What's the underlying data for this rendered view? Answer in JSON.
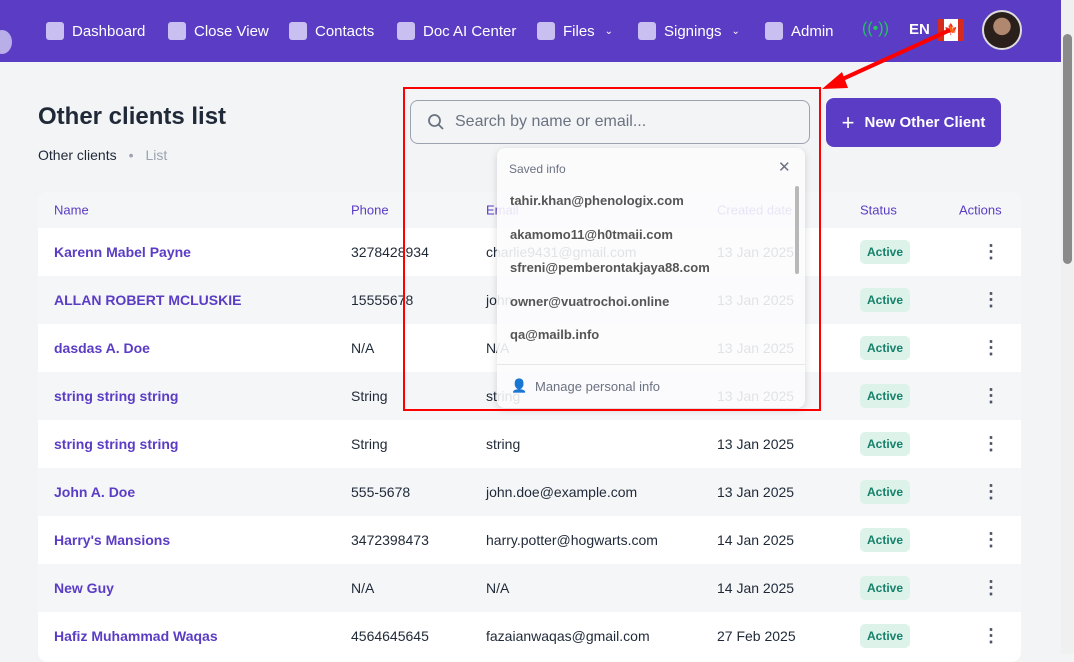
{
  "nav": {
    "items": [
      {
        "label": "Dashboard",
        "icon": "chart-icon"
      },
      {
        "label": "Close View",
        "icon": "calendar-icon"
      },
      {
        "label": "Contacts",
        "icon": "contact-icon"
      },
      {
        "label": "Doc AI Center",
        "icon": "monitor-icon"
      },
      {
        "label": "Files",
        "icon": "file-icon",
        "dropdown": true
      },
      {
        "label": "Signings",
        "icon": "star-icon",
        "dropdown": true
      },
      {
        "label": "Admin",
        "icon": "lock-icon"
      }
    ],
    "lang": "EN",
    "flag": "🍁"
  },
  "page": {
    "title": "Other clients list",
    "breadcrumb": [
      "Other clients",
      "List"
    ]
  },
  "search": {
    "placeholder": "Search by name or email...",
    "value": ""
  },
  "new_button": "New Other Client",
  "table": {
    "headers": [
      "Name",
      "Phone",
      "Email",
      "Created date",
      "Status",
      "Actions"
    ],
    "rows": [
      [
        "Karenn Mabel Payne",
        "3278428934",
        "charlie9431@gmail.com",
        "13 Jan 2025",
        "Active"
      ],
      [
        "ALLAN ROBERT MCLUSKIE",
        "15555678",
        "john",
        "13 Jan 2025",
        "Active"
      ],
      [
        "dasdas A. Doe",
        "N/A",
        "N/A",
        "13 Jan 2025",
        "Active"
      ],
      [
        "string string string",
        "String",
        "string",
        "13 Jan 2025",
        "Active"
      ],
      [
        "string string string",
        "String",
        "string",
        "13 Jan 2025",
        "Active"
      ],
      [
        "John A. Doe",
        "555-5678",
        "john.doe@example.com",
        "13 Jan 2025",
        "Active"
      ],
      [
        "Harry's Mansions",
        "3472398473",
        "harry.potter@hogwarts.com",
        "14 Jan 2025",
        "Active"
      ],
      [
        "New Guy",
        "N/A",
        "N/A",
        "14 Jan 2025",
        "Active"
      ],
      [
        "Hafiz Muhammad Waqas",
        "4564645645",
        "fazaianwaqas@gmail.com",
        "27 Feb 2025",
        "Active"
      ]
    ]
  },
  "autofill": {
    "title": "Saved info",
    "options": [
      "tahir.khan@phenologix.com",
      "akamomo11@h0tmaii.com",
      "sfreni@pemberontakjaya88.com",
      "owner@vuatrochoi.online",
      "qa@mailb.info"
    ],
    "manage": "Manage personal info"
  },
  "colors": {
    "brand": "#5b3cc4",
    "status_active": "#17806a",
    "annotation": "#ff0000"
  }
}
